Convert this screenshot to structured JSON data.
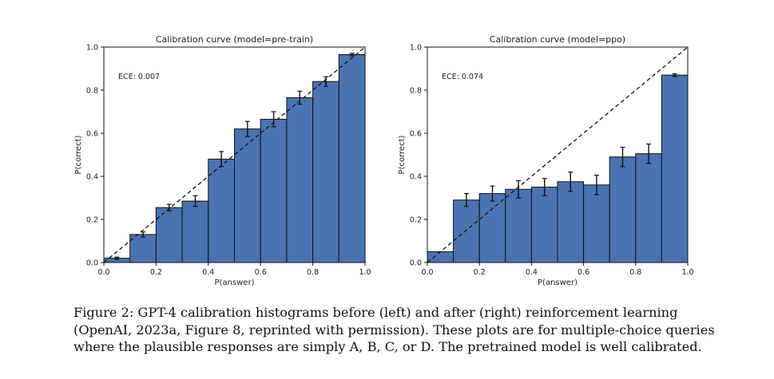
{
  "chart_data": [
    {
      "type": "bar",
      "title": "Calibration curve (model=pre-train)",
      "xlabel": "P(answer)",
      "ylabel": "P(correct)",
      "xlim": [
        0,
        1
      ],
      "ylim": [
        0,
        1
      ],
      "ece_label": "ECE: 0.007",
      "bin_edges": [
        0.0,
        0.1,
        0.2,
        0.3,
        0.4,
        0.5,
        0.6,
        0.7,
        0.8,
        0.9,
        1.0
      ],
      "values": [
        0.02,
        0.13,
        0.255,
        0.285,
        0.48,
        0.62,
        0.665,
        0.765,
        0.84,
        0.965
      ],
      "errors": [
        0.005,
        0.012,
        0.015,
        0.025,
        0.035,
        0.035,
        0.035,
        0.03,
        0.022,
        0.006
      ],
      "xticks": [
        "0.0",
        "0.2",
        "0.4",
        "0.6",
        "0.8",
        "1.0"
      ],
      "yticks": [
        "0.0",
        "0.2",
        "0.4",
        "0.6",
        "0.8",
        "1.0"
      ],
      "diagonal": "dashed y = x reference line",
      "bar_color": "#4a73b1"
    },
    {
      "type": "bar",
      "title": "Calibration curve (model=ppo)",
      "xlabel": "P(answer)",
      "ylabel": "P(correct)",
      "xlim": [
        0,
        1
      ],
      "ylim": [
        0,
        1
      ],
      "ece_label": "ECE: 0.074",
      "bin_edges": [
        0.0,
        0.1,
        0.2,
        0.3,
        0.4,
        0.5,
        0.6,
        0.7,
        0.8,
        0.9,
        1.0
      ],
      "values": [
        0.05,
        0.29,
        0.32,
        0.34,
        0.35,
        0.375,
        0.36,
        0.49,
        0.505,
        0.87
      ],
      "errors": [
        0.0,
        0.03,
        0.035,
        0.04,
        0.04,
        0.045,
        0.045,
        0.045,
        0.045,
        0.006
      ],
      "xticks": [
        "0.0",
        "0.2",
        "0.4",
        "0.6",
        "0.8",
        "1.0"
      ],
      "yticks": [
        "0.0",
        "0.2",
        "0.4",
        "0.6",
        "0.8",
        "1.0"
      ],
      "diagonal": "dashed y = x reference line",
      "bar_color": "#4a73b1"
    }
  ],
  "caption": {
    "lines": [
      "Figure 2: GPT-4 calibration histograms before (left) and after (right) reinforcement learning",
      "(OpenAI, 2023a, Figure 8, reprinted with permission). These plots are for multiple-choice queries",
      "where the plausible responses are simply A, B, C, or D. The pretrained model is well calibrated."
    ]
  }
}
